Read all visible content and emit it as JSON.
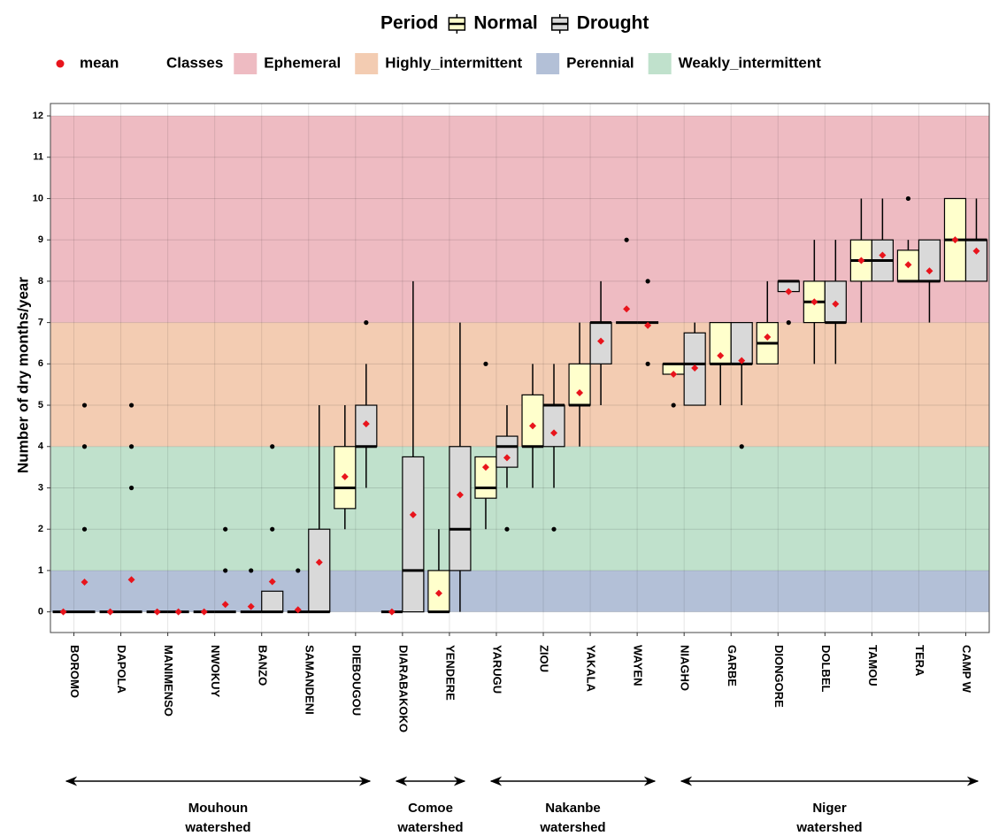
{
  "chart_data": {
    "type": "boxplot",
    "ylabel": "Number of dry months/year",
    "legend_title": "Period",
    "mean_label": "mean",
    "classes_title": "Classes",
    "ylim": [
      -0.5,
      12.3
    ],
    "yticks": [
      0,
      1,
      2,
      3,
      4,
      5,
      6,
      7,
      8,
      9,
      10,
      11,
      12
    ],
    "grid": true,
    "bands": [
      {
        "name": "Ephemeral",
        "from": 7,
        "to": 12,
        "color": "#eebbc2"
      },
      {
        "name": "Highly_intermittent",
        "from": 4,
        "to": 7,
        "color": "#f3ccb2"
      },
      {
        "name": "Perennial",
        "from": 0,
        "to": 1,
        "color": "#b3c0d7"
      },
      {
        "name": "Weakly_intermittent",
        "from": 1,
        "to": 4,
        "color": "#c0e1cc"
      }
    ],
    "categories": [
      "BOROMO",
      "DAPOLA",
      "MANIMENSO",
      "NWOKUY",
      "BANZO",
      "SAMANDENI",
      "DIEBOUGOU",
      "DIARABAKOKO",
      "YENDERE",
      "YARUGU",
      "ZIOU",
      "YAKALA",
      "WAYEN",
      "NIAGHO",
      "GARBE",
      "DIONGORE",
      "DOLBEL",
      "TAMOU",
      "TERA",
      "CAMP W"
    ],
    "series": [
      {
        "name": "Normal",
        "color": "#ffffcc",
        "boxes": [
          {
            "q1": 0,
            "median": 0,
            "q3": 0,
            "whislo": 0,
            "whishi": 0,
            "mean": 0,
            "outliers": []
          },
          {
            "q1": 0,
            "median": 0,
            "q3": 0,
            "whislo": 0,
            "whishi": 0,
            "mean": 0,
            "outliers": []
          },
          {
            "q1": 0,
            "median": 0,
            "q3": 0,
            "whislo": 0,
            "whishi": 0,
            "mean": 0,
            "outliers": []
          },
          {
            "q1": 0,
            "median": 0,
            "q3": 0,
            "whislo": 0,
            "whishi": 0,
            "mean": 0,
            "outliers": []
          },
          {
            "q1": 0,
            "median": 0,
            "q3": 0,
            "whislo": 0,
            "whishi": 0,
            "mean": 0.13,
            "outliers": [
              1
            ]
          },
          {
            "q1": 0,
            "median": 0,
            "q3": 0,
            "whislo": 0,
            "whishi": 0,
            "mean": 0.05,
            "outliers": [
              1
            ]
          },
          {
            "q1": 2.5,
            "median": 3,
            "q3": 4,
            "whislo": 2,
            "whishi": 5,
            "mean": 3.27,
            "outliers": []
          },
          {
            "q1": 0,
            "median": 0,
            "q3": 0,
            "whislo": 0,
            "whishi": 0,
            "mean": 0,
            "outliers": []
          },
          {
            "q1": 0,
            "median": 0,
            "q3": 1,
            "whislo": 0,
            "whishi": 2,
            "mean": 0.45,
            "outliers": []
          },
          {
            "q1": 2.75,
            "median": 3,
            "q3": 3.75,
            "whislo": 2,
            "whishi": 3.75,
            "mean": 3.5,
            "outliers": [
              6
            ]
          },
          {
            "q1": 4,
            "median": 4,
            "q3": 5.25,
            "whislo": 3,
            "whishi": 6,
            "mean": 4.5,
            "outliers": []
          },
          {
            "q1": 5,
            "median": 5,
            "q3": 6,
            "whislo": 4,
            "whishi": 7,
            "mean": 5.3,
            "outliers": []
          },
          {
            "q1": 7,
            "median": 7,
            "q3": 7,
            "whislo": 7,
            "whishi": 7,
            "mean": 7.33,
            "outliers": [
              9
            ]
          },
          {
            "q1": 5.75,
            "median": 6,
            "q3": 6,
            "whislo": 5.75,
            "whishi": 6,
            "mean": 5.75,
            "outliers": [
              5
            ]
          },
          {
            "q1": 6,
            "median": 6,
            "q3": 7,
            "whislo": 5,
            "whishi": 7,
            "mean": 6.2,
            "outliers": []
          },
          {
            "q1": 6,
            "median": 6.5,
            "q3": 7,
            "whislo": 6,
            "whishi": 8,
            "mean": 6.65,
            "outliers": []
          },
          {
            "q1": 7,
            "median": 7.5,
            "q3": 8,
            "whislo": 6,
            "whishi": 9,
            "mean": 7.5,
            "outliers": []
          },
          {
            "q1": 8,
            "median": 8.5,
            "q3": 9,
            "whislo": 7,
            "whishi": 10,
            "mean": 8.5,
            "outliers": []
          },
          {
            "q1": 8,
            "median": 8,
            "q3": 8.75,
            "whislo": 8,
            "whishi": 9,
            "mean": 8.4,
            "outliers": [
              10
            ]
          },
          {
            "q1": 8,
            "median": 9,
            "q3": 10,
            "whislo": 8,
            "whishi": 10,
            "mean": 9,
            "outliers": []
          }
        ]
      },
      {
        "name": "Drought",
        "color": "#d9d9d9",
        "boxes": [
          {
            "q1": 0,
            "median": 0,
            "q3": 0,
            "whislo": 0,
            "whishi": 0,
            "mean": 0.72,
            "outliers": [
              2,
              4,
              5
            ]
          },
          {
            "q1": 0,
            "median": 0,
            "q3": 0,
            "whislo": 0,
            "whishi": 0,
            "mean": 0.78,
            "outliers": [
              3,
              4,
              5
            ]
          },
          {
            "q1": 0,
            "median": 0,
            "q3": 0,
            "whislo": 0,
            "whishi": 0,
            "mean": 0,
            "outliers": []
          },
          {
            "q1": 0,
            "median": 0,
            "q3": 0,
            "whislo": 0,
            "whishi": 0,
            "mean": 0.18,
            "outliers": [
              1,
              2
            ]
          },
          {
            "q1": 0,
            "median": 0,
            "q3": 0.5,
            "whislo": 0,
            "whishi": 0.5,
            "mean": 0.73,
            "outliers": [
              2,
              4
            ]
          },
          {
            "q1": 0,
            "median": 0,
            "q3": 2,
            "whislo": 0,
            "whishi": 5,
            "mean": 1.2,
            "outliers": []
          },
          {
            "q1": 4,
            "median": 4,
            "q3": 5,
            "whislo": 3,
            "whishi": 6,
            "mean": 4.55,
            "outliers": [
              7
            ]
          },
          {
            "q1": 0,
            "median": 1,
            "q3": 3.75,
            "whislo": 0,
            "whishi": 8,
            "mean": 2.35,
            "outliers": []
          },
          {
            "q1": 1,
            "median": 2,
            "q3": 4,
            "whislo": 0,
            "whishi": 7,
            "mean": 2.83,
            "outliers": []
          },
          {
            "q1": 3.5,
            "median": 4,
            "q3": 4.25,
            "whislo": 3,
            "whishi": 5,
            "mean": 3.73,
            "outliers": [
              2
            ]
          },
          {
            "q1": 4,
            "median": 5,
            "q3": 5,
            "whislo": 3,
            "whishi": 6,
            "mean": 4.33,
            "outliers": [
              2
            ]
          },
          {
            "q1": 6,
            "median": 7,
            "q3": 7,
            "whislo": 5,
            "whishi": 8,
            "mean": 6.55,
            "outliers": []
          },
          {
            "q1": 7,
            "median": 7,
            "q3": 7,
            "whislo": 7,
            "whishi": 7,
            "mean": 6.93,
            "outliers": [
              6,
              8
            ]
          },
          {
            "q1": 5,
            "median": 6,
            "q3": 6.75,
            "whislo": 5,
            "whishi": 7,
            "mean": 5.9,
            "outliers": []
          },
          {
            "q1": 6,
            "median": 6,
            "q3": 7,
            "whislo": 5,
            "whishi": 7,
            "mean": 6.08,
            "outliers": [
              4
            ]
          },
          {
            "q1": 7.75,
            "median": 8,
            "q3": 8,
            "whislo": 7.75,
            "whishi": 8,
            "mean": 7.75,
            "outliers": [
              7
            ]
          },
          {
            "q1": 7,
            "median": 7,
            "q3": 8,
            "whislo": 6,
            "whishi": 9,
            "mean": 7.45,
            "outliers": []
          },
          {
            "q1": 8,
            "median": 8.5,
            "q3": 9,
            "whislo": 8,
            "whishi": 10,
            "mean": 8.63,
            "outliers": []
          },
          {
            "q1": 8,
            "median": 8,
            "q3": 9,
            "whislo": 7,
            "whishi": 9,
            "mean": 8.25,
            "outliers": []
          },
          {
            "q1": 8,
            "median": 9,
            "q3": 9,
            "whislo": 8,
            "whishi": 10,
            "mean": 8.73,
            "outliers": []
          }
        ]
      }
    ],
    "watersheds": [
      {
        "lines": [
          "Mouhoun",
          "watershed"
        ]
      },
      {
        "lines": [
          "Comoe",
          "watershed"
        ]
      },
      {
        "lines": [
          "Nakanbe",
          "watershed"
        ]
      },
      {
        "lines": [
          "Niger",
          "watershed"
        ]
      }
    ]
  }
}
